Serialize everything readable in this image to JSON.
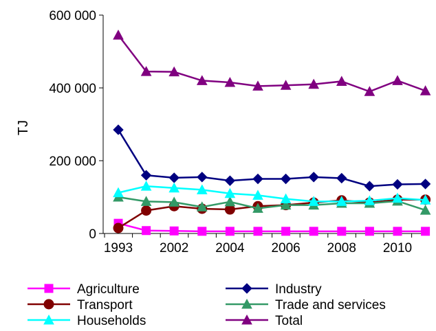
{
  "chart_data": {
    "type": "line",
    "ylabel": "TJ",
    "xlabel": "",
    "title": "",
    "ylim": [
      0,
      600000
    ],
    "yticks": [
      0,
      200000,
      400000,
      600000
    ],
    "ytick_labels": [
      "0",
      "200 000",
      "400 000",
      "600 000"
    ],
    "x": [
      1993,
      2000,
      2002,
      2003,
      2004,
      2005,
      2006,
      2007,
      2008,
      2009,
      2010,
      2011
    ],
    "x_tick_labels": [
      "1993",
      "",
      "2002",
      "",
      "2004",
      "",
      "2006",
      "",
      "2008",
      "",
      "2010",
      ""
    ],
    "grid": false,
    "legend_position": "bottom",
    "series": [
      {
        "name": "Agriculture",
        "color": "#ff00ff",
        "marker": "square",
        "values": [
          28000,
          8000,
          7000,
          6000,
          6000,
          6000,
          6000,
          6000,
          6000,
          6000,
          6000,
          6000
        ]
      },
      {
        "name": "Industry",
        "color": "#000080",
        "marker": "diamond",
        "values": [
          285000,
          160000,
          153000,
          155000,
          145000,
          150000,
          150000,
          155000,
          152000,
          130000,
          135000,
          136000
        ]
      },
      {
        "name": "Transport",
        "color": "#800000",
        "marker": "circle",
        "values": [
          15000,
          63000,
          75000,
          68000,
          66000,
          75000,
          78000,
          85000,
          91000,
          85000,
          93000,
          93000
        ]
      },
      {
        "name": "Trade and services",
        "color": "#339966",
        "marker": "triangle",
        "values": [
          100000,
          88000,
          86000,
          73000,
          87000,
          69000,
          78000,
          78000,
          83000,
          83000,
          89000,
          64000
        ]
      },
      {
        "name": "Households",
        "color": "#00ffff",
        "marker": "triangle",
        "values": [
          112000,
          130000,
          125000,
          120000,
          110000,
          105000,
          95000,
          88000,
          88000,
          90000,
          97000,
          92000
        ]
      },
      {
        "name": "Total",
        "color": "#800080",
        "marker": "triangle",
        "values": [
          545000,
          445000,
          444000,
          420000,
          415000,
          405000,
          407000,
          410000,
          418000,
          390000,
          420000,
          392000
        ]
      }
    ]
  }
}
